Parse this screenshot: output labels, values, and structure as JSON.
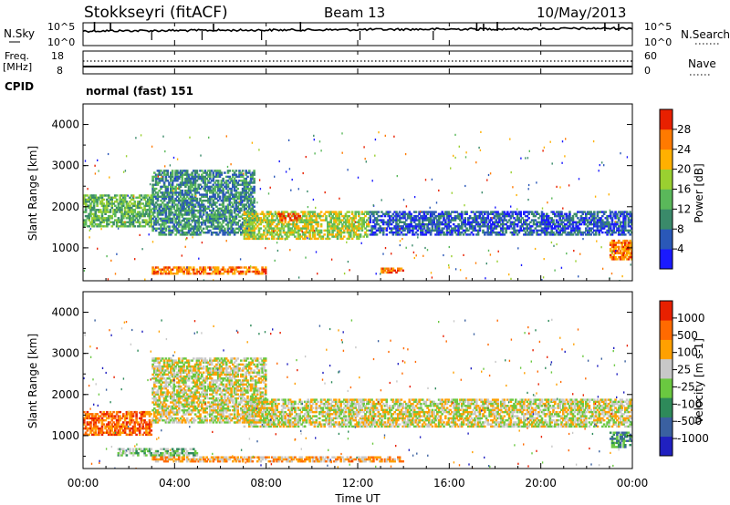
{
  "header": {
    "station": "Stokkseyri (fitACF)",
    "beam": "Beam 13",
    "date": "10/May/2013"
  },
  "panels": {
    "nsky": {
      "label": "N.Sky",
      "tick_top": "10^5",
      "tick_bottom": "10^0",
      "right_label": "N.Search",
      "right_tick_top": "10^5",
      "right_tick_bottom": "10^0"
    },
    "freq": {
      "label_line1": "Freq.",
      "label_line2": "[MHz]",
      "tick_top": "18",
      "tick_bottom": "8",
      "right_label": "Nave",
      "right_tick_top": "60",
      "right_tick_bottom": "0"
    },
    "cpid": {
      "label": "CPID",
      "value": "normal (fast) 151"
    }
  },
  "chart_data": [
    {
      "type": "heatmap",
      "name": "power",
      "ylabel": "Slant Range [km]",
      "yticks": [
        "1000",
        "2000",
        "3000",
        "4000"
      ],
      "ylim": [
        200,
        4500
      ],
      "colorbar_label": "Power [dB]",
      "colorbar_ticks": [
        "4",
        "8",
        "12",
        "16",
        "20",
        "24",
        "28"
      ],
      "colors": [
        "#1a1aff",
        "#2a58b8",
        "#3a8a6a",
        "#5ab85a",
        "#9ad030",
        "#ffb000",
        "#ff7a00",
        "#e82000"
      ],
      "bands": [
        {
          "t0": 0.0,
          "t1": 3.0,
          "r0": 1500,
          "r1": 2300,
          "level": 3
        },
        {
          "t0": 3.0,
          "t1": 7.5,
          "r0": 1300,
          "r1": 2900,
          "level": 2
        },
        {
          "t0": 7.0,
          "t1": 12.5,
          "r0": 1200,
          "r1": 1900,
          "level": 4
        },
        {
          "t0": 12.5,
          "t1": 24.0,
          "r0": 1300,
          "r1": 1900,
          "level": 1
        },
        {
          "t0": 3.0,
          "t1": 8.0,
          "r0": 350,
          "r1": 550,
          "level": 6
        },
        {
          "t0": 13.0,
          "t1": 14.0,
          "r0": 380,
          "r1": 520,
          "level": 6
        },
        {
          "t0": 23.0,
          "t1": 24.0,
          "r0": 700,
          "r1": 1200,
          "level": 6
        },
        {
          "t0": 8.5,
          "t1": 9.5,
          "r0": 1650,
          "r1": 1850,
          "level": 7
        }
      ]
    },
    {
      "type": "heatmap",
      "name": "velocity",
      "ylabel": "Slant Range [km]",
      "yticks": [
        "1000",
        "2000",
        "3000",
        "4000"
      ],
      "ylim": [
        200,
        4500
      ],
      "colorbar_label": "Velocity [m s-1]",
      "colorbar_ticks": [
        "1000",
        "500",
        "100",
        "25",
        "-25",
        "-100",
        "-500",
        "-1000"
      ],
      "colors": [
        "#2020c0",
        "#3a60a0",
        "#2e8a5a",
        "#6ac840",
        "#c8c8c8",
        "#ffa000",
        "#ff6a00",
        "#e82000"
      ],
      "bands": [
        {
          "t0": 0.0,
          "t1": 3.0,
          "r0": 1000,
          "r1": 1600,
          "level": 6
        },
        {
          "t0": 3.0,
          "t1": 8.0,
          "r0": 1300,
          "r1": 2900,
          "level": 4
        },
        {
          "t0": 7.0,
          "t1": 24.0,
          "r0": 1200,
          "r1": 1900,
          "level": 4
        },
        {
          "t0": 1.5,
          "t1": 5.0,
          "r0": 500,
          "r1": 700,
          "level": 3
        },
        {
          "t0": 3.0,
          "t1": 14.0,
          "r0": 350,
          "r1": 500,
          "level": 5
        },
        {
          "t0": 23.0,
          "t1": 24.0,
          "r0": 700,
          "r1": 1100,
          "level": 2
        }
      ]
    }
  ],
  "xaxis": {
    "label": "Time UT",
    "ticks": [
      "00:00",
      "04:00",
      "08:00",
      "12:00",
      "16:00",
      "20:00",
      "00:00"
    ]
  }
}
